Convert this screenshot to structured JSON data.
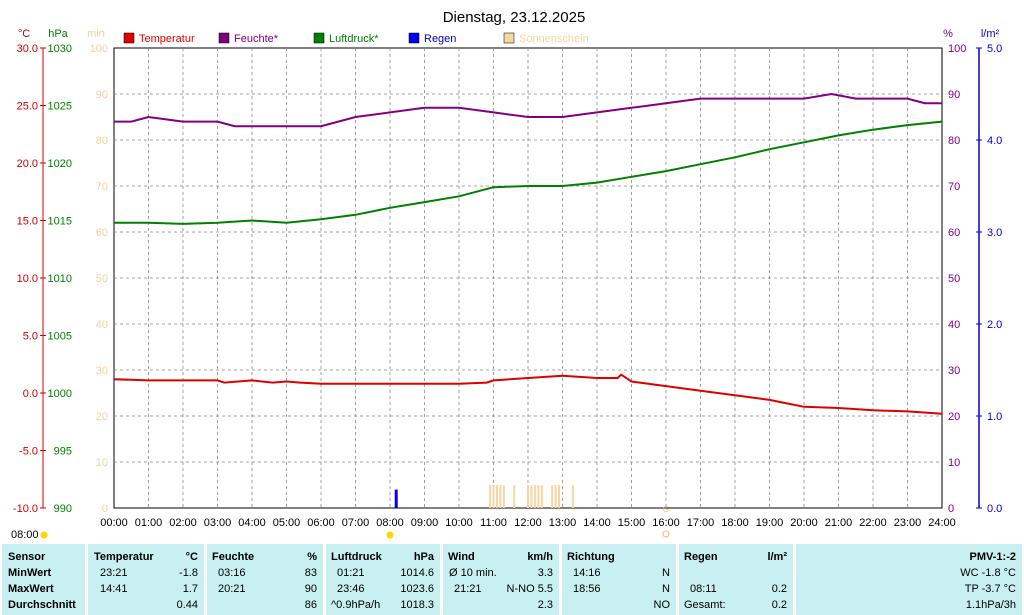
{
  "header": {
    "title": "Dienstag, 23.12.2025"
  },
  "axes": {
    "temp_unit": "°C",
    "pressure_unit": "hPa",
    "sun_unit": "min",
    "humidity_unit": "%",
    "rain_unit": "l/m²",
    "temp_ticks": [
      "30.0",
      "25.0",
      "20.0",
      "15.0",
      "10.0",
      "5.0",
      "0.0",
      "-5.0",
      "-10.0"
    ],
    "pressure_ticks": [
      "1030",
      "1025",
      "1020",
      "1015",
      "1010",
      "1005",
      "1000",
      "995",
      "990"
    ],
    "sun_ticks": [
      "100",
      "90",
      "80",
      "70",
      "60",
      "50",
      "40",
      "30",
      "20",
      "10",
      "0"
    ],
    "humidity_ticks": [
      "100",
      "90",
      "80",
      "70",
      "60",
      "50",
      "40",
      "30",
      "20",
      "10",
      "0"
    ],
    "rain_ticks": [
      "5.0",
      "4.0",
      "3.0",
      "2.0",
      "1.0",
      "0.0"
    ],
    "x_ticks": [
      "00:00",
      "01:00",
      "02:00",
      "03:00",
      "04:00",
      "05:00",
      "06:00",
      "07:00",
      "08:00",
      "09:00",
      "10:00",
      "11:00",
      "12:00",
      "13:00",
      "14:00",
      "15:00",
      "16:00",
      "17:00",
      "18:00",
      "19:00",
      "20:00",
      "21:00",
      "22:00",
      "23:00",
      "24:00"
    ],
    "sunrise": "08:00",
    "sunset_marker": "G"
  },
  "colors": {
    "temperature": "#dd0000",
    "humidity": "#800080",
    "pressure": "#008000",
    "rain": "#0000ee",
    "sunshine": "#f5d6a0",
    "grid": "#888888",
    "panel": "#c8f0f0",
    "temp_axis": "#cc0000",
    "pressure_axis": "#008000",
    "humidity_axis": "#800080",
    "rain_axis": "#0000cc",
    "sun_axis": "#f0d2a0"
  },
  "chart_data": {
    "type": "line",
    "title": "Dienstag, 23.12.2025",
    "x_range": [
      0,
      24
    ],
    "ylim": [
      -10,
      30
    ],
    "legend": [
      "Temperatur",
      "Feuchte*",
      "Luftdruck*",
      "Regen",
      "Sonnenschein"
    ],
    "legend_position": "top",
    "grid": true,
    "series": [
      {
        "name": "Temperatur",
        "axis": "°C",
        "ylim": [
          -10,
          30
        ],
        "points": [
          [
            0,
            1.2
          ],
          [
            1,
            1.1
          ],
          [
            2,
            1.1
          ],
          [
            3,
            1.1
          ],
          [
            3.2,
            0.9
          ],
          [
            4,
            1.1
          ],
          [
            4.6,
            0.9
          ],
          [
            5,
            1.0
          ],
          [
            5.4,
            0.9
          ],
          [
            6,
            0.8
          ],
          [
            7,
            0.8
          ],
          [
            8,
            0.8
          ],
          [
            9,
            0.8
          ],
          [
            10,
            0.8
          ],
          [
            10.8,
            0.9
          ],
          [
            11,
            1.1
          ],
          [
            12,
            1.3
          ],
          [
            13,
            1.5
          ],
          [
            13.5,
            1.4
          ],
          [
            14,
            1.3
          ],
          [
            14.6,
            1.3
          ],
          [
            14.7,
            1.6
          ],
          [
            15,
            1.0
          ],
          [
            16,
            0.6
          ],
          [
            17,
            0.2
          ],
          [
            18,
            -0.2
          ],
          [
            19,
            -0.6
          ],
          [
            19.5,
            -0.9
          ],
          [
            20,
            -1.2
          ],
          [
            21,
            -1.3
          ],
          [
            22,
            -1.5
          ],
          [
            23,
            -1.6
          ],
          [
            24,
            -1.8
          ]
        ]
      },
      {
        "name": "Feuchte*",
        "axis": "%",
        "ylim": [
          0,
          100
        ],
        "points": [
          [
            0,
            84
          ],
          [
            0.5,
            84
          ],
          [
            1,
            85
          ],
          [
            2,
            84
          ],
          [
            3,
            84
          ],
          [
            3.5,
            83
          ],
          [
            4,
            83
          ],
          [
            5,
            83
          ],
          [
            6,
            83
          ],
          [
            6.5,
            84
          ],
          [
            7,
            85
          ],
          [
            8,
            86
          ],
          [
            9,
            87
          ],
          [
            10,
            87
          ],
          [
            11,
            86
          ],
          [
            12,
            85
          ],
          [
            13,
            85
          ],
          [
            14,
            86
          ],
          [
            15,
            87
          ],
          [
            16,
            88
          ],
          [
            17,
            89
          ],
          [
            18,
            89
          ],
          [
            19,
            89
          ],
          [
            20,
            89
          ],
          [
            20.8,
            90
          ],
          [
            21.5,
            89
          ],
          [
            22,
            89
          ],
          [
            23,
            89
          ],
          [
            23.5,
            88
          ],
          [
            24,
            88
          ]
        ]
      },
      {
        "name": "Luftdruck*",
        "axis": "hPa",
        "ylim": [
          990,
          1030
        ],
        "points": [
          [
            0,
            1014.8
          ],
          [
            1,
            1014.8
          ],
          [
            2,
            1014.7
          ],
          [
            3,
            1014.8
          ],
          [
            4,
            1015.0
          ],
          [
            5,
            1014.8
          ],
          [
            6,
            1015.1
          ],
          [
            7,
            1015.5
          ],
          [
            8,
            1016.1
          ],
          [
            9,
            1016.6
          ],
          [
            10,
            1017.1
          ],
          [
            11,
            1017.9
          ],
          [
            12,
            1018.0
          ],
          [
            13,
            1018.0
          ],
          [
            14,
            1018.3
          ],
          [
            15,
            1018.8
          ],
          [
            16,
            1019.3
          ],
          [
            17,
            1019.9
          ],
          [
            18,
            1020.5
          ],
          [
            19,
            1021.2
          ],
          [
            20,
            1021.8
          ],
          [
            21,
            1022.4
          ],
          [
            22,
            1022.9
          ],
          [
            23,
            1023.3
          ],
          [
            24,
            1023.6
          ]
        ]
      },
      {
        "name": "Regen",
        "axis": "l/m²",
        "ylim": [
          0,
          5
        ],
        "points": [
          [
            8.18,
            0.2
          ]
        ]
      },
      {
        "name": "Sonnenschein",
        "axis": "min",
        "ylim": [
          0,
          100
        ],
        "points": [
          [
            10.9,
            5
          ],
          [
            11.0,
            5
          ],
          [
            11.1,
            5
          ],
          [
            11.2,
            5
          ],
          [
            11.3,
            5
          ],
          [
            11.6,
            5
          ],
          [
            12.0,
            5
          ],
          [
            12.1,
            5
          ],
          [
            12.2,
            5
          ],
          [
            12.3,
            5
          ],
          [
            12.4,
            5
          ],
          [
            12.7,
            5
          ],
          [
            12.8,
            5
          ],
          [
            12.9,
            5
          ],
          [
            13.3,
            5
          ]
        ]
      }
    ]
  },
  "stats": {
    "labels": {
      "sensor": "Sensor",
      "min": "MinWert",
      "max": "MaxWert",
      "avg": "Durchschnitt"
    },
    "temp": {
      "header": "Temperatur",
      "unit": "°C",
      "min_time": "23:21",
      "min_val": "-1.8",
      "max_time": "14:41",
      "max_val": "1.7",
      "avg_val": "0.44"
    },
    "hum": {
      "header": "Feuchte",
      "unit": "%",
      "min_time": "03:16",
      "min_val": "83",
      "max_time": "20:21",
      "max_val": "90",
      "avg_val": "86"
    },
    "press": {
      "header": "Luftdruck",
      "unit": "hPa",
      "min_time": "01:21",
      "min_val": "1014.6",
      "max_time": "23:46",
      "max_val": "1023.6",
      "avg_label": "^0.9hPa/h",
      "avg_val": "1018.3"
    },
    "wind": {
      "header": "Wind",
      "unit": "km/h",
      "min_label": "Ø 10 min.",
      "min_val": "3.3",
      "max_time": "21:21",
      "max_val": "N-NO 5.5",
      "avg_val": "2.3"
    },
    "dir": {
      "header": "Richtung",
      "min_time": "14:16",
      "min_val": "N",
      "max_time": "18:56",
      "max_val": "N",
      "avg_val": "NO"
    },
    "rain": {
      "header": "Regen",
      "unit": "l/m²",
      "max_time": "08:11",
      "max_val": "0.2",
      "total_label": "Gesamt:",
      "total_val": "0.2"
    },
    "pmv": {
      "header": "PMV-1:-2",
      "wc": "WC -1.8 °C",
      "tp": "TP -3.7 °C",
      "trend": "1.1hPa/3h"
    }
  }
}
